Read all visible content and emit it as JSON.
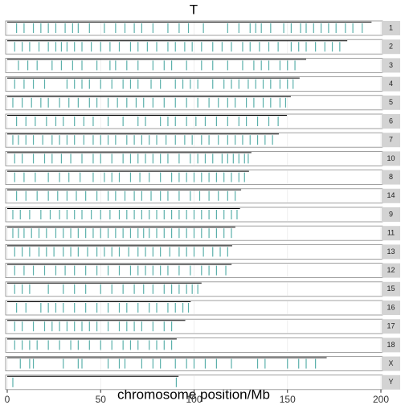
{
  "chart_data": {
    "type": "karyogram",
    "title": "T",
    "x_label": "chromosome position/Mb",
    "xlim": [
      0,
      200
    ],
    "xticks": [
      0,
      50,
      100,
      150,
      200
    ],
    "grid": true,
    "color": "#5bb0ab",
    "panels": [
      {
        "name": "1",
        "length": 195,
        "positions": [
          5,
          9,
          14,
          18,
          22,
          26,
          31,
          35,
          38,
          44,
          52,
          58,
          63,
          68,
          72,
          78,
          86,
          92,
          97,
          105,
          118,
          124,
          130,
          133,
          136,
          141,
          148,
          152,
          157,
          160,
          164,
          168,
          172,
          176,
          181,
          185,
          190
        ]
      },
      {
        "name": "2",
        "length": 182,
        "positions": [
          4,
          8,
          12,
          17,
          22,
          26,
          29,
          32,
          36,
          40,
          45,
          50,
          55,
          60,
          66,
          70,
          75,
          80,
          86,
          90,
          95,
          99,
          104,
          110,
          115,
          120,
          126,
          130,
          135,
          140,
          145,
          152,
          156,
          160,
          165,
          170,
          174,
          178
        ]
      },
      {
        "name": "3",
        "length": 160,
        "positions": [
          6,
          11,
          16,
          24,
          29,
          35,
          40,
          48,
          55,
          58,
          64,
          70,
          78,
          84,
          88,
          96,
          104,
          110,
          118,
          126,
          132,
          136,
          140,
          146,
          150,
          154
        ]
      },
      {
        "name": "4",
        "length": 156.5,
        "positions": [
          4,
          9,
          14,
          20,
          32,
          36,
          40,
          44,
          50,
          56,
          62,
          66,
          70,
          77,
          82,
          90,
          94,
          98,
          102,
          110,
          116,
          120,
          124,
          129,
          133,
          137,
          141,
          146,
          150,
          153
        ]
      },
      {
        "name": "5",
        "length": 151.8,
        "positions": [
          3,
          8,
          13,
          18,
          22,
          28,
          33,
          38,
          44,
          48,
          54,
          59,
          64,
          69,
          73,
          78,
          84,
          90,
          96,
          102,
          108,
          113,
          118,
          122,
          128,
          132,
          137,
          141,
          146,
          149
        ]
      },
      {
        "name": "6",
        "length": 149.7,
        "positions": [
          5,
          10,
          15,
          21,
          26,
          30,
          36,
          41,
          46,
          54,
          62,
          70,
          74,
          82,
          86,
          90,
          96,
          101,
          106,
          112,
          118,
          124,
          128,
          134,
          140,
          145
        ]
      },
      {
        "name": "7",
        "length": 145.4,
        "positions": [
          3,
          6,
          10,
          14,
          19,
          24,
          28,
          32,
          36,
          41,
          46,
          50,
          54,
          58,
          64,
          68,
          72,
          76,
          80,
          85,
          90,
          95,
          99,
          104,
          108,
          113,
          118,
          122,
          126,
          130,
          134,
          138,
          142
        ]
      },
      {
        "name": "10",
        "length": 130.7,
        "positions": [
          4,
          8,
          14,
          20,
          24,
          29,
          34,
          40,
          46,
          50,
          56,
          62,
          66,
          70,
          74,
          78,
          82,
          86,
          92,
          98,
          102,
          106,
          110,
          115,
          118,
          121,
          124,
          127,
          129
        ]
      },
      {
        "name": "8",
        "length": 129.4,
        "positions": [
          4,
          9,
          15,
          22,
          28,
          33,
          39,
          46,
          52,
          56,
          60,
          66,
          71,
          76,
          82,
          88,
          92,
          96,
          100,
          104,
          108,
          112,
          116,
          120,
          124,
          127
        ]
      },
      {
        "name": "14",
        "length": 125.2,
        "positions": [
          5,
          10,
          16,
          22,
          27,
          32,
          37,
          42,
          48,
          54,
          58,
          63,
          68,
          72,
          77,
          82,
          86,
          92,
          98,
          103,
          108,
          113,
          118,
          122
        ]
      },
      {
        "name": "9",
        "length": 124.6,
        "positions": [
          3,
          7,
          12,
          18,
          23,
          28,
          32,
          36,
          40,
          45,
          50,
          55,
          60,
          64,
          68,
          72,
          76,
          80,
          84,
          88,
          92,
          96,
          100,
          104,
          108,
          112,
          116,
          120,
          123
        ]
      },
      {
        "name": "11",
        "length": 122.1,
        "positions": [
          3,
          6,
          9,
          13,
          17,
          21,
          26,
          30,
          34,
          38,
          42,
          46,
          50,
          54,
          58,
          62,
          66,
          70,
          73,
          76,
          80,
          84,
          88,
          92,
          96,
          100,
          104,
          108,
          112,
          116,
          120
        ]
      },
      {
        "name": "13",
        "length": 120.4,
        "positions": [
          4,
          8,
          12,
          17,
          21,
          25,
          30,
          34,
          38,
          43,
          48,
          52,
          56,
          60,
          65,
          70,
          74,
          78,
          82,
          87,
          92,
          96,
          100,
          105,
          110,
          114,
          118
        ]
      },
      {
        "name": "12",
        "length": 120.1,
        "positions": [
          4,
          9,
          14,
          20,
          26,
          31,
          36,
          42,
          48,
          54,
          60,
          66,
          70,
          74,
          78,
          82,
          86,
          92,
          98,
          104,
          108,
          112,
          117
        ]
      },
      {
        "name": "15",
        "length": 104,
        "positions": [
          4,
          8,
          12,
          22,
          30,
          36,
          42,
          50,
          56,
          62,
          68,
          73,
          78,
          84,
          88,
          92,
          96,
          99,
          102
        ]
      },
      {
        "name": "16",
        "length": 98.2,
        "positions": [
          5,
          10,
          18,
          22,
          26,
          30,
          36,
          42,
          48,
          54,
          60,
          64,
          70,
          76,
          80,
          86,
          90,
          94,
          97
        ]
      },
      {
        "name": "17",
        "length": 95.3,
        "positions": [
          4,
          8,
          14,
          20,
          24,
          28,
          32,
          36,
          40,
          44,
          48,
          54,
          60,
          64,
          68,
          72,
          78,
          84,
          88
        ]
      },
      {
        "name": "18",
        "length": 90.7,
        "positions": [
          4,
          8,
          12,
          16,
          22,
          28,
          34,
          38,
          44,
          50,
          56,
          62,
          66,
          70,
          76,
          80,
          84,
          88
        ]
      },
      {
        "name": "X",
        "length": 171,
        "positions": [
          7,
          12,
          14,
          30,
          38,
          40,
          54,
          60,
          63,
          72,
          78,
          82,
          90,
          96,
          100,
          106,
          112,
          120,
          134,
          138,
          150,
          156,
          160,
          165
        ]
      },
      {
        "name": "Y",
        "length": 91.7,
        "positions": [
          3,
          90.5
        ]
      }
    ]
  }
}
